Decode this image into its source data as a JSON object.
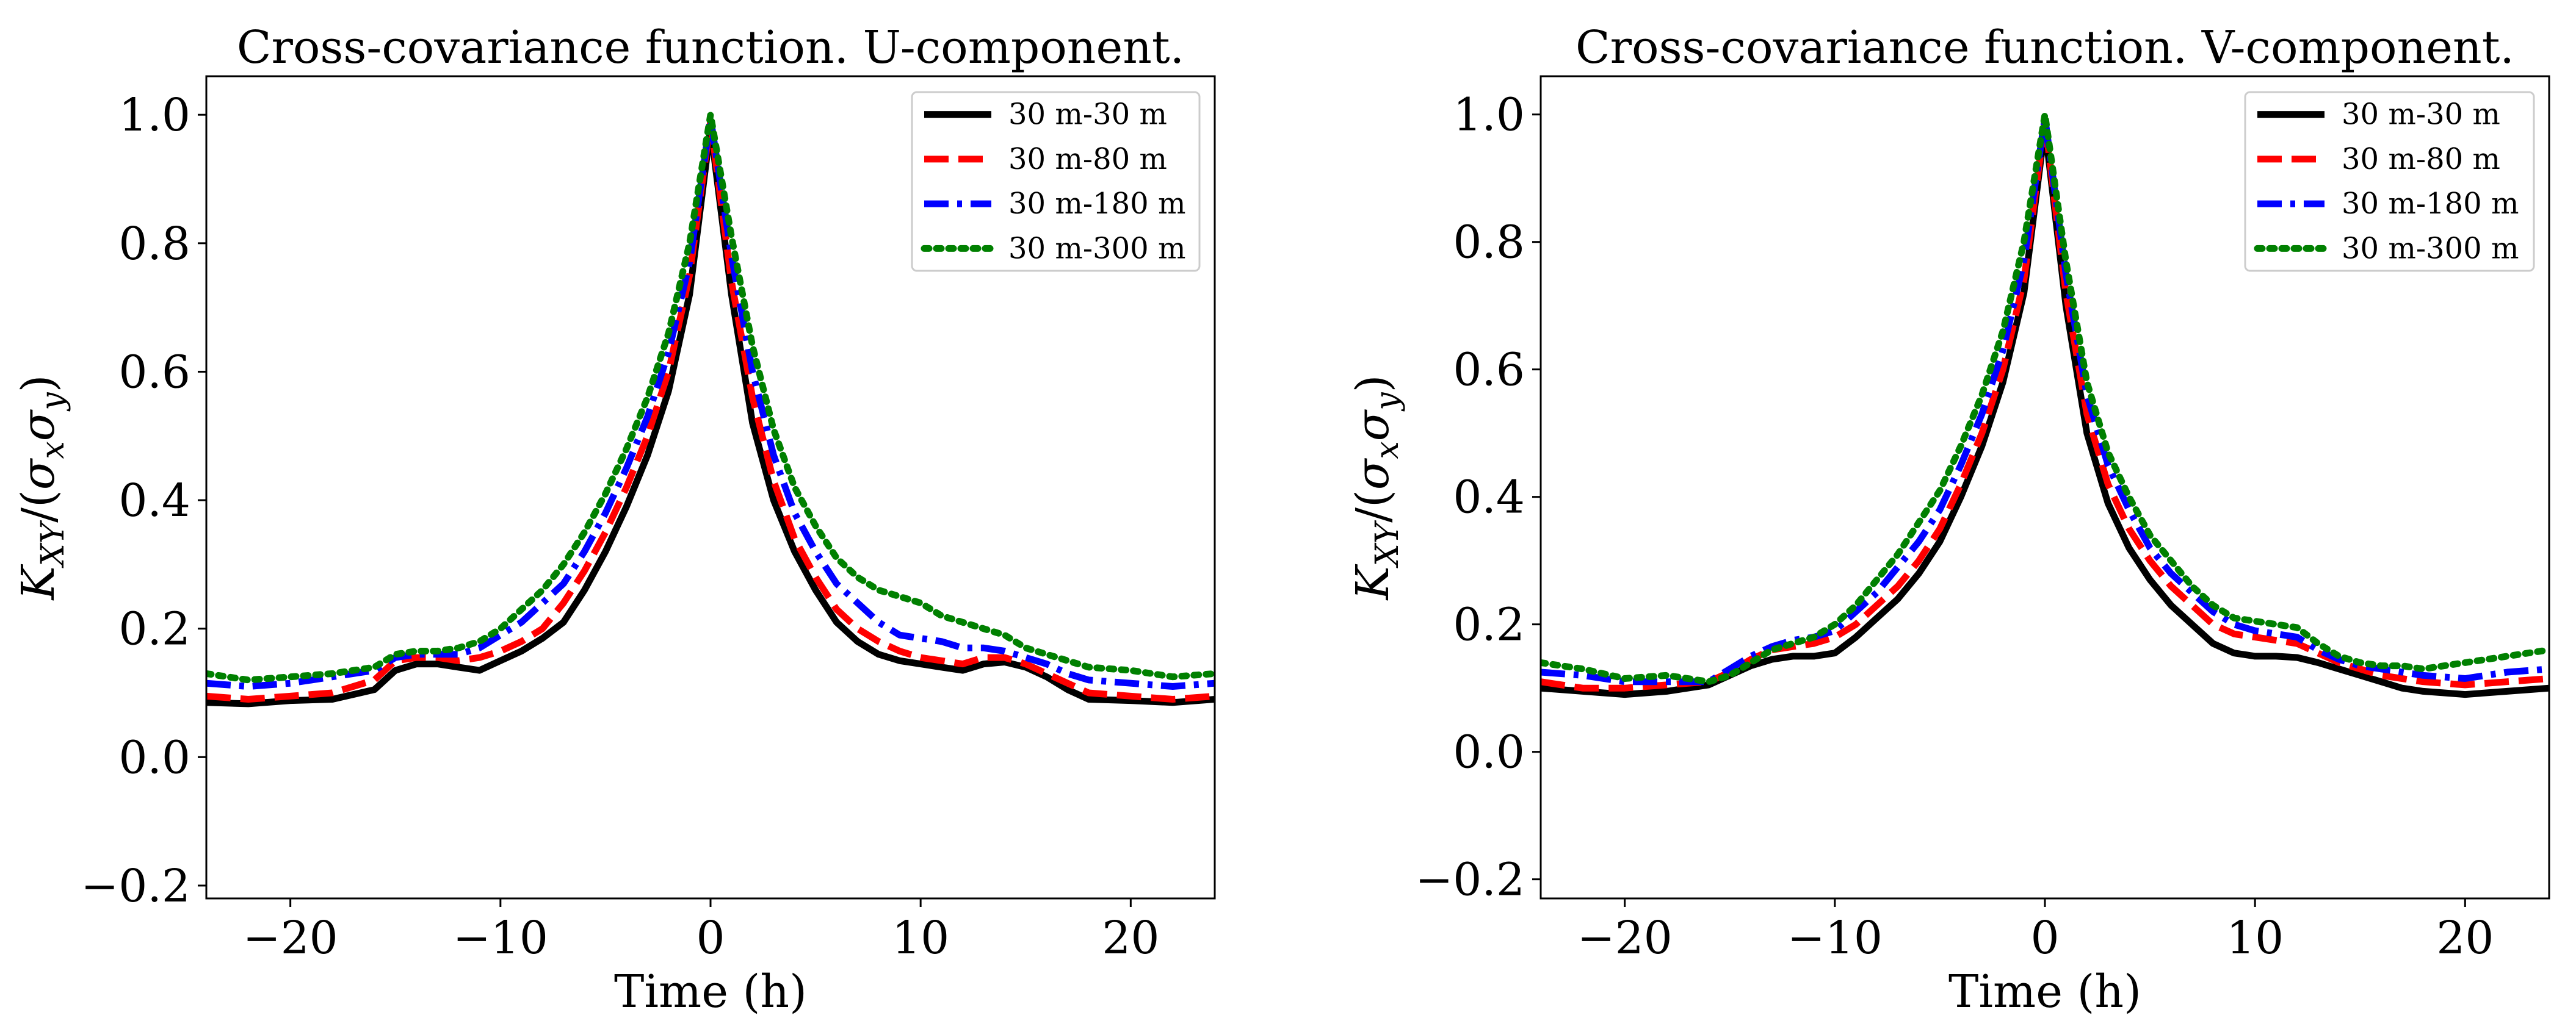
{
  "chart_data": [
    {
      "type": "line",
      "title": "Cross-covariance function. U-component.",
      "xlabel": "Time (h)",
      "ylabel": "K_{XY}/(σ_xσ_y)",
      "ylabel_parts": {
        "K": "K",
        "K_sub": "XY",
        "slash": "/(",
        "sx": "σ",
        "sx_sub": "x",
        "sy": "σ",
        "sy_sub": "y",
        "close": ")"
      },
      "xlim": [
        -24,
        24
      ],
      "ylim": [
        -0.22,
        1.06
      ],
      "x_ticks": [
        -20,
        -10,
        0,
        10,
        20
      ],
      "x_tick_labels": [
        "−20",
        "−10",
        "0",
        "10",
        "20"
      ],
      "y_ticks": [
        -0.2,
        0.0,
        0.2,
        0.4,
        0.6,
        0.8,
        1.0
      ],
      "y_tick_labels": [
        "−0.2",
        "0.0",
        "0.2",
        "0.4",
        "0.6",
        "0.8",
        "1.0"
      ],
      "grid": false,
      "legend_position": "top-right",
      "series": [
        {
          "name": "30 m-30 m",
          "color": "#000000",
          "style": "solid",
          "x": [
            -24,
            -22,
            -20,
            -18,
            -16,
            -15,
            -14,
            -13,
            -12,
            -11,
            -10,
            -9,
            -8,
            -7,
            -6,
            -5,
            -4,
            -3,
            -2,
            -1,
            0,
            1,
            2,
            3,
            4,
            5,
            6,
            7,
            8,
            9,
            10,
            11,
            12,
            13,
            14,
            15,
            16,
            17,
            18,
            20,
            22,
            24
          ],
          "values": [
            0.085,
            0.083,
            0.088,
            0.09,
            0.105,
            0.135,
            0.145,
            0.145,
            0.14,
            0.135,
            0.15,
            0.165,
            0.185,
            0.21,
            0.26,
            0.32,
            0.39,
            0.47,
            0.57,
            0.72,
            0.98,
            0.72,
            0.52,
            0.4,
            0.32,
            0.26,
            0.21,
            0.18,
            0.16,
            0.15,
            0.145,
            0.14,
            0.135,
            0.145,
            0.148,
            0.14,
            0.125,
            0.105,
            0.09,
            0.088,
            0.085,
            0.09
          ]
        },
        {
          "name": "30 m-80 m",
          "color": "#ff0000",
          "style": "dashed",
          "x": [
            -24,
            -22,
            -20,
            -18,
            -16,
            -15,
            -14,
            -13,
            -12,
            -11,
            -10,
            -9,
            -8,
            -7,
            -6,
            -5,
            -4,
            -3,
            -2,
            -1,
            0,
            1,
            2,
            3,
            4,
            5,
            6,
            7,
            8,
            9,
            10,
            11,
            12,
            13,
            14,
            15,
            16,
            17,
            18,
            20,
            22,
            24
          ],
          "values": [
            0.095,
            0.09,
            0.095,
            0.1,
            0.12,
            0.15,
            0.155,
            0.155,
            0.15,
            0.155,
            0.165,
            0.18,
            0.2,
            0.24,
            0.29,
            0.35,
            0.42,
            0.5,
            0.6,
            0.75,
            0.99,
            0.74,
            0.56,
            0.43,
            0.34,
            0.28,
            0.23,
            0.2,
            0.18,
            0.165,
            0.155,
            0.15,
            0.145,
            0.155,
            0.155,
            0.145,
            0.13,
            0.115,
            0.1,
            0.095,
            0.09,
            0.095
          ]
        },
        {
          "name": "30 m-180 m",
          "color": "#0000ff",
          "style": "dashdot",
          "x": [
            -24,
            -22,
            -20,
            -18,
            -16,
            -15,
            -14,
            -13,
            -12,
            -11,
            -10,
            -9,
            -8,
            -7,
            -6,
            -5,
            -4,
            -3,
            -2,
            -1,
            0,
            1,
            2,
            3,
            4,
            5,
            6,
            7,
            8,
            9,
            10,
            11,
            12,
            13,
            14,
            15,
            16,
            17,
            18,
            20,
            22,
            24
          ],
          "values": [
            0.115,
            0.11,
            0.115,
            0.125,
            0.135,
            0.155,
            0.16,
            0.16,
            0.16,
            0.17,
            0.19,
            0.21,
            0.24,
            0.27,
            0.32,
            0.38,
            0.45,
            0.53,
            0.63,
            0.77,
            0.995,
            0.78,
            0.6,
            0.47,
            0.38,
            0.32,
            0.27,
            0.24,
            0.21,
            0.19,
            0.185,
            0.18,
            0.17,
            0.17,
            0.165,
            0.155,
            0.145,
            0.13,
            0.12,
            0.115,
            0.11,
            0.115
          ]
        },
        {
          "name": "30 m-300 m",
          "color": "#008000",
          "style": "dotted",
          "x": [
            -24,
            -22,
            -20,
            -18,
            -16,
            -15,
            -14,
            -13,
            -12,
            -11,
            -10,
            -9,
            -8,
            -7,
            -6,
            -5,
            -4,
            -3,
            -2,
            -1,
            0,
            1,
            2,
            3,
            4,
            5,
            6,
            7,
            8,
            9,
            10,
            11,
            12,
            13,
            14,
            15,
            16,
            17,
            18,
            20,
            22,
            24
          ],
          "values": [
            0.13,
            0.12,
            0.125,
            0.13,
            0.14,
            0.16,
            0.165,
            0.165,
            0.17,
            0.18,
            0.2,
            0.23,
            0.26,
            0.3,
            0.35,
            0.41,
            0.48,
            0.56,
            0.66,
            0.8,
            1.0,
            0.81,
            0.64,
            0.51,
            0.42,
            0.36,
            0.31,
            0.28,
            0.26,
            0.25,
            0.24,
            0.22,
            0.21,
            0.2,
            0.19,
            0.17,
            0.16,
            0.15,
            0.14,
            0.135,
            0.125,
            0.13
          ]
        }
      ]
    },
    {
      "type": "line",
      "title": "Cross-covariance function. V-component.",
      "xlabel": "Time (h)",
      "ylabel": "K_{XY}/(σ_xσ_y)",
      "ylabel_parts": {
        "K": "K",
        "K_sub": "XY",
        "slash": "/(",
        "sx": "σ",
        "sx_sub": "x",
        "sy": "σ",
        "sy_sub": "y",
        "close": ")"
      },
      "xlim": [
        -24,
        24
      ],
      "ylim": [
        -0.23,
        1.06
      ],
      "x_ticks": [
        -20,
        -10,
        0,
        10,
        20
      ],
      "x_tick_labels": [
        "−20",
        "−10",
        "0",
        "10",
        "20"
      ],
      "y_ticks": [
        -0.2,
        0.0,
        0.2,
        0.4,
        0.6,
        0.8,
        1.0
      ],
      "y_tick_labels": [
        "−0.2",
        "0.0",
        "0.2",
        "0.4",
        "0.6",
        "0.8",
        "1.0"
      ],
      "grid": false,
      "legend_position": "top-right",
      "series": [
        {
          "name": "30 m-30 m",
          "color": "#000000",
          "style": "solid",
          "x": [
            -24,
            -22,
            -20,
            -18,
            -16,
            -15,
            -14,
            -13,
            -12,
            -11,
            -10,
            -9,
            -8,
            -7,
            -6,
            -5,
            -4,
            -3,
            -2,
            -1,
            0,
            1,
            2,
            3,
            4,
            5,
            6,
            7,
            8,
            9,
            10,
            11,
            12,
            13,
            14,
            15,
            16,
            17,
            18,
            20,
            22,
            24
          ],
          "values": [
            0.1,
            0.095,
            0.09,
            0.095,
            0.105,
            0.12,
            0.135,
            0.145,
            0.15,
            0.15,
            0.155,
            0.18,
            0.21,
            0.24,
            0.28,
            0.33,
            0.4,
            0.48,
            0.58,
            0.72,
            0.98,
            0.7,
            0.5,
            0.39,
            0.32,
            0.27,
            0.23,
            0.2,
            0.17,
            0.155,
            0.15,
            0.15,
            0.148,
            0.14,
            0.13,
            0.12,
            0.11,
            0.1,
            0.095,
            0.09,
            0.095,
            0.1
          ]
        },
        {
          "name": "30 m-80 m",
          "color": "#ff0000",
          "style": "dashed",
          "x": [
            -24,
            -22,
            -20,
            -18,
            -16,
            -15,
            -14,
            -13,
            -12,
            -11,
            -10,
            -9,
            -8,
            -7,
            -6,
            -5,
            -4,
            -3,
            -2,
            -1,
            0,
            1,
            2,
            3,
            4,
            5,
            6,
            7,
            8,
            9,
            10,
            11,
            12,
            13,
            14,
            15,
            16,
            17,
            18,
            20,
            22,
            24
          ],
          "values": [
            0.11,
            0.1,
            0.1,
            0.105,
            0.11,
            0.125,
            0.145,
            0.16,
            0.165,
            0.17,
            0.18,
            0.2,
            0.23,
            0.26,
            0.3,
            0.35,
            0.42,
            0.5,
            0.6,
            0.74,
            0.99,
            0.72,
            0.53,
            0.42,
            0.35,
            0.3,
            0.26,
            0.23,
            0.2,
            0.185,
            0.18,
            0.175,
            0.17,
            0.155,
            0.14,
            0.13,
            0.12,
            0.115,
            0.11,
            0.105,
            0.11,
            0.115
          ]
        },
        {
          "name": "30 m-180 m",
          "color": "#0000ff",
          "style": "dashdot",
          "x": [
            -24,
            -22,
            -20,
            -18,
            -16,
            -15,
            -14,
            -13,
            -12,
            -11,
            -10,
            -9,
            -8,
            -7,
            -6,
            -5,
            -4,
            -3,
            -2,
            -1,
            0,
            1,
            2,
            3,
            4,
            5,
            6,
            7,
            8,
            9,
            10,
            11,
            12,
            13,
            14,
            15,
            16,
            17,
            18,
            20,
            22,
            24
          ],
          "values": [
            0.125,
            0.12,
            0.11,
            0.11,
            0.11,
            0.13,
            0.15,
            0.165,
            0.175,
            0.18,
            0.19,
            0.22,
            0.25,
            0.29,
            0.33,
            0.38,
            0.45,
            0.53,
            0.63,
            0.77,
            0.995,
            0.75,
            0.56,
            0.45,
            0.38,
            0.32,
            0.28,
            0.25,
            0.22,
            0.2,
            0.19,
            0.185,
            0.18,
            0.16,
            0.145,
            0.135,
            0.13,
            0.125,
            0.12,
            0.115,
            0.125,
            0.13
          ]
        },
        {
          "name": "30 m-300 m",
          "color": "#008000",
          "style": "dotted",
          "x": [
            -24,
            -22,
            -20,
            -18,
            -16,
            -15,
            -14,
            -13,
            -12,
            -11,
            -10,
            -9,
            -8,
            -7,
            -6,
            -5,
            -4,
            -3,
            -2,
            -1,
            0,
            1,
            2,
            3,
            4,
            5,
            6,
            7,
            8,
            9,
            10,
            11,
            12,
            13,
            14,
            15,
            16,
            17,
            18,
            20,
            22,
            24
          ],
          "values": [
            0.14,
            0.13,
            0.115,
            0.12,
            0.11,
            0.12,
            0.14,
            0.16,
            0.17,
            0.18,
            0.2,
            0.23,
            0.27,
            0.31,
            0.36,
            0.41,
            0.48,
            0.56,
            0.66,
            0.8,
            1.0,
            0.77,
            0.58,
            0.47,
            0.4,
            0.34,
            0.3,
            0.26,
            0.23,
            0.21,
            0.205,
            0.2,
            0.195,
            0.17,
            0.15,
            0.14,
            0.135,
            0.135,
            0.13,
            0.14,
            0.15,
            0.16
          ]
        }
      ]
    }
  ]
}
